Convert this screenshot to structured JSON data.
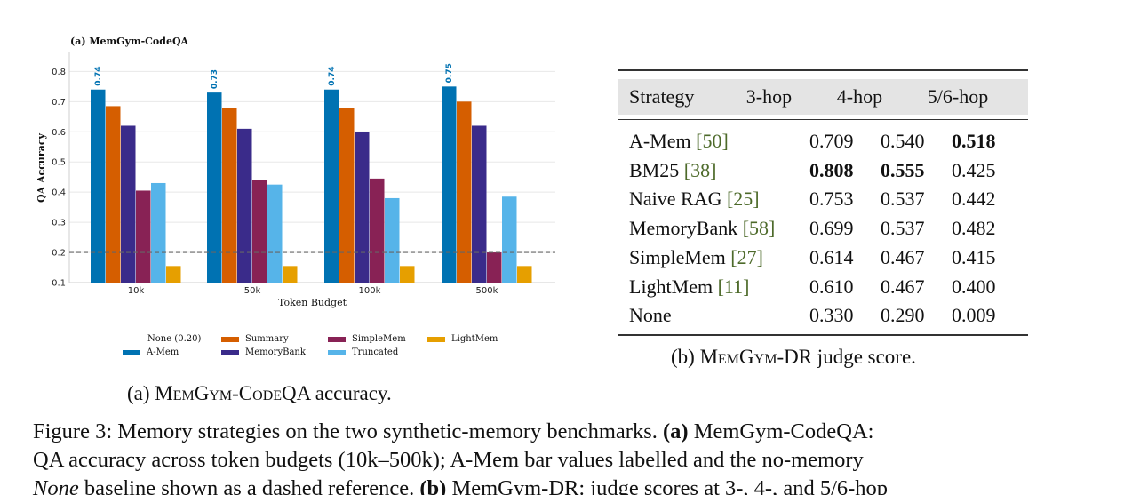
{
  "chart_data": {
    "type": "bar",
    "title": "(a) MemGym-CodeQA",
    "xlabel": "Token Budget",
    "ylabel": "QA Accuracy",
    "categories": [
      "10k",
      "50k",
      "100k",
      "500k"
    ],
    "yticks": [
      "0.1",
      "0.2",
      "0.3",
      "0.4",
      "0.5",
      "0.6",
      "0.7",
      "0.8"
    ],
    "ylim": [
      0.1,
      0.86
    ],
    "grid": true,
    "baseline": {
      "name": "None (0.20)",
      "value": 0.2
    },
    "series": [
      {
        "name": "A-Mem",
        "color": "#0072b2",
        "values": [
          0.74,
          0.73,
          0.74,
          0.75
        ],
        "labels": [
          "0.74",
          "0.73",
          "0.74",
          "0.75"
        ]
      },
      {
        "name": "Summary",
        "color": "#d55e00",
        "values": [
          0.685,
          0.68,
          0.68,
          0.7
        ]
      },
      {
        "name": "MemoryBank",
        "color": "#3a2b8a",
        "values": [
          0.62,
          0.61,
          0.6,
          0.62
        ]
      },
      {
        "name": "SimpleMem",
        "color": "#882255",
        "values": [
          0.405,
          0.44,
          0.445,
          0.2
        ]
      },
      {
        "name": "Truncated",
        "color": "#56b4e9",
        "values": [
          0.43,
          0.425,
          0.38,
          0.385
        ]
      },
      {
        "name": "LightMem",
        "color": "#e69f00",
        "values": [
          0.155,
          0.155,
          0.155,
          0.155
        ]
      }
    ],
    "legend_position": "bottom"
  },
  "captions": {
    "a_prefix": "(a) M",
    "a_sc1": "em",
    "a_mid1": "G",
    "a_sc2": "ym",
    "a_mid2": "-C",
    "a_sc3": "ode",
    "a_suffix": "QA accuracy.",
    "b_prefix": "(b) M",
    "b_sc1": "em",
    "b_mid1": "G",
    "b_sc2": "ym",
    "b_suffix": "-DR judge score."
  },
  "table": {
    "headers": [
      "Strategy",
      "3-hop",
      "4-hop",
      "5/6-hop"
    ],
    "rows": [
      {
        "name": "A-Mem ",
        "ref": "[50]",
        "v1": "0.709",
        "v2": "0.540",
        "v3": "0.518"
      },
      {
        "name": "BM25 ",
        "ref": "[38]",
        "v1": "0.808",
        "v2": "0.555",
        "v3": "0.425"
      },
      {
        "name": "Naive RAG ",
        "ref": "[25]",
        "v1": "0.753",
        "v2": "0.537",
        "v3": "0.442"
      },
      {
        "name": "MemoryBank ",
        "ref": "[58]",
        "v1": "0.699",
        "v2": "0.537",
        "v3": "0.482"
      },
      {
        "name": "SimpleMem ",
        "ref": "[27]",
        "v1": "0.614",
        "v2": "0.467",
        "v3": "0.415"
      },
      {
        "name": "LightMem ",
        "ref": "[11]",
        "v1": "0.610",
        "v2": "0.467",
        "v3": "0.400"
      },
      {
        "name": "None",
        "ref": "",
        "v1": "0.330",
        "v2": "0.290",
        "v3": "0.009"
      }
    ]
  },
  "figure_caption": {
    "line1_a": "Figure 3: Memory strategies on the two synthetic-memory benchmarks. ",
    "line1_b": "(a)",
    "line1_c": " MemGym-CodeQA:",
    "line2": "QA accuracy across token budgets (10k–500k); A-Mem bar values labelled and the no-memory",
    "line3_a": "None",
    "line3_b": " baseline shown as a dashed reference. ",
    "line3_c": "(b)",
    "line3_d": " MemGym-DR: judge scores at 3-, 4-, and 5/6-hop"
  }
}
